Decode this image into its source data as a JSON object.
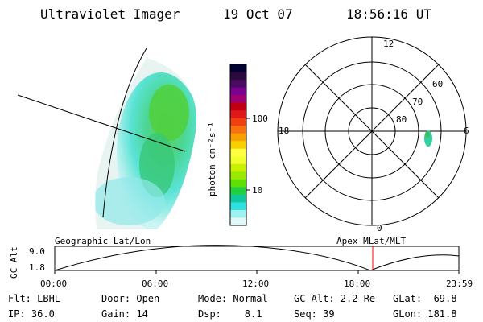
{
  "header": {
    "instrument": "Ultraviolet Imager",
    "date": "19 Oct 07",
    "time": "18:56:16 UT"
  },
  "colorbar": {
    "unit_label": "photon cm⁻²s⁻¹",
    "tick_labels": [
      "100",
      "10"
    ],
    "colors": [
      "#000033",
      "#2a0a3a",
      "#4a0a60",
      "#7a0090",
      "#a00070",
      "#c00010",
      "#e01818",
      "#f04010",
      "#f87010",
      "#f8a000",
      "#f8d000",
      "#ffff40",
      "#f0ff30",
      "#c8f000",
      "#98e800",
      "#60e000",
      "#20d040",
      "#10c8a0",
      "#30e0e0",
      "#a0f0f0",
      "#e0f8f8"
    ]
  },
  "polar_plot": {
    "mlt_labels": {
      "top": "12",
      "left": "18",
      "right": "6",
      "bottom": "0"
    },
    "lat_labels": [
      "60",
      "70",
      "80"
    ]
  },
  "timeline": {
    "left_title": "Geographic Lat/Lon",
    "right_title": "Apex MLat/MLT",
    "axis_label": "GC Alt",
    "ytick_top": "9.0",
    "ytick_bottom": "1.8",
    "time_ticks": [
      "00:00",
      "06:00",
      "12:00",
      "18:00",
      "23:59"
    ],
    "current_time_color": "#ff0000"
  },
  "info": {
    "filter": "Flt: LBHL",
    "door": "Door: Open",
    "mode": "Mode: Normal",
    "gc_alt": "GC Alt: 2.2 Re",
    "glat": "GLat:  69.8",
    "ip": "IP: 36.0",
    "gain": "Gain: 14",
    "dsp": "Dsp:    8.1",
    "seq": "Seq: 39",
    "glon": "GLon: 181.8"
  }
}
